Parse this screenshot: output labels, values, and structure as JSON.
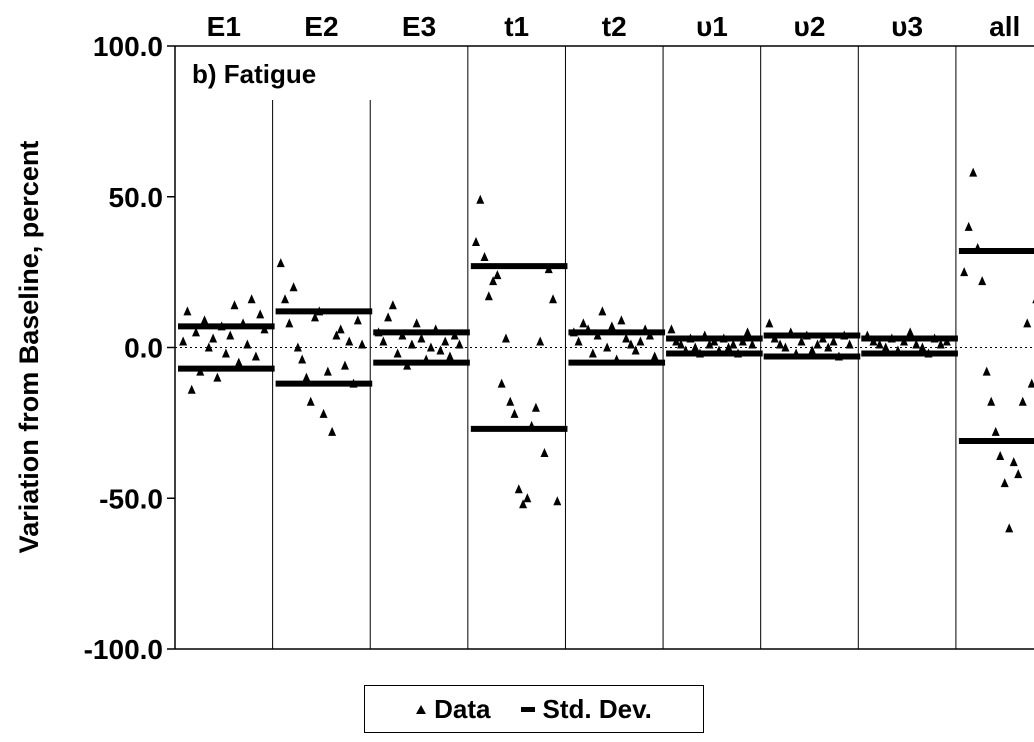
{
  "chart_data": {
    "type": "scatter",
    "title": "",
    "panel_label": "b) Fatigue",
    "ylabel": "Variation from Baseline, percent",
    "xlabel": "",
    "ylim": [
      -100,
      100
    ],
    "yticks": [
      "100.0",
      "50.0",
      "0.0",
      "-50.0",
      "-100.0"
    ],
    "ytick_values": [
      100,
      50,
      0,
      -50,
      -100
    ],
    "categories": [
      "E1",
      "E2",
      "E3",
      "t1",
      "t2",
      "υ1",
      "υ2",
      "υ3",
      "all"
    ],
    "grid": "vertical separators between groups; dashed horizontal line at 0",
    "legend": {
      "position": "bottom-center",
      "entries": [
        "Data",
        "Std. Dev."
      ]
    },
    "series": [
      {
        "name": "Data",
        "marker": "triangle",
        "groups": [
          [
            2,
            12,
            -14,
            5,
            -8,
            9,
            0,
            3,
            -10,
            7,
            -2,
            4,
            14,
            -5,
            8,
            1,
            16,
            -3,
            11,
            6
          ],
          [
            28,
            16,
            8,
            20,
            0,
            -4,
            -10,
            -18,
            10,
            12,
            -22,
            -8,
            -28,
            4,
            6,
            -6,
            2,
            -12,
            9,
            1
          ],
          [
            5,
            2,
            10,
            14,
            -2,
            4,
            -6,
            1,
            8,
            3,
            -4,
            0,
            6,
            -1,
            2,
            -3,
            4,
            1
          ],
          [
            35,
            49,
            30,
            17,
            22,
            24,
            -12,
            3,
            -18,
            -22,
            -47,
            -52,
            -50,
            -26,
            -20,
            2,
            -35,
            26,
            16,
            -51
          ],
          [
            5,
            2,
            8,
            6,
            -2,
            4,
            12,
            0,
            7,
            -4,
            9,
            3,
            1,
            -1,
            2,
            6,
            4,
            -3
          ],
          [
            6,
            2,
            1,
            -1,
            3,
            0,
            -2,
            4,
            1,
            2,
            -1,
            3,
            0,
            1,
            -2,
            2,
            5,
            1
          ],
          [
            8,
            3,
            1,
            0,
            5,
            -2,
            2,
            4,
            -1,
            1,
            3,
            0,
            2,
            -3,
            4,
            1
          ],
          [
            4,
            2,
            1,
            0,
            3,
            -1,
            2,
            5,
            1,
            0,
            -2,
            3,
            1,
            2
          ],
          [
            25,
            40,
            58,
            33,
            22,
            -8,
            -18,
            -28,
            -36,
            -45,
            -60,
            -38,
            -42,
            -18,
            8,
            -12,
            16,
            -22,
            -53
          ]
        ]
      },
      {
        "name": "Std. Dev.",
        "marker": "bar",
        "groups": [
          [
            -7,
            7
          ],
          [
            -12,
            12
          ],
          [
            -5,
            5
          ],
          [
            -27,
            27
          ],
          [
            -5,
            5
          ],
          [
            -2,
            3
          ],
          [
            -3,
            4
          ],
          [
            -2,
            3
          ],
          [
            -31,
            32
          ]
        ]
      }
    ]
  }
}
